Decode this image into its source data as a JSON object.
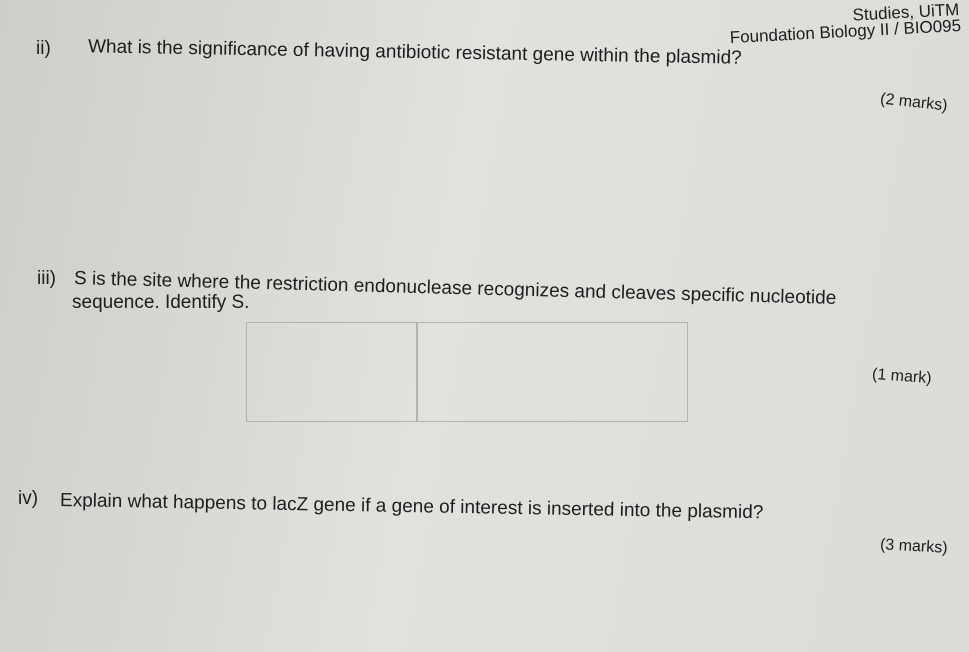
{
  "header": {
    "line1": "Studies, UiTM",
    "line2": "Foundation Biology II / BIO095"
  },
  "questions": [
    {
      "number": "ii)",
      "text": "What is the significance of having antibiotic resistant gene within the plasmid?",
      "marks": "(2 marks)"
    },
    {
      "number": "iii)",
      "text": "S is the site where the restriction endonuclease recognizes and cleaves specific nucleotide",
      "text2": "sequence. Identify S.",
      "marks": "(1 mark)"
    },
    {
      "number": "iv)",
      "text": "Explain what happens to lacZ gene if a gene of interest is inserted into the plasmid?",
      "marks": "(3 marks)"
    }
  ]
}
